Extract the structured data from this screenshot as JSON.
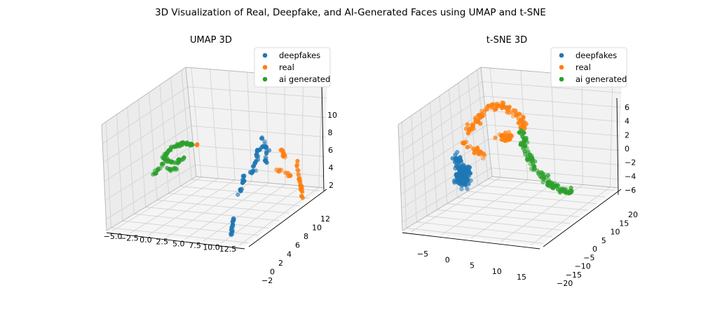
{
  "suptitle": "3D Visualization of Real, Deepfake, and AI-Generated Faces using UMAP and t-SNE",
  "chart_data": [
    {
      "type": "scatter",
      "title": "UMAP 3D",
      "legend": {
        "placement": "top-right",
        "entries": [
          "deepfakes",
          "real",
          "ai generated"
        ]
      },
      "axes": {
        "x": {
          "ticks": [
            "−5.0",
            "−2.5",
            "0.0",
            "2.5",
            "5.0",
            "7.5",
            "10.0",
            "12.5"
          ]
        },
        "y": {
          "ticks": [
            "−2",
            "0",
            "2",
            "4",
            "6",
            "8",
            "10",
            "12"
          ]
        },
        "z": {
          "ticks": [
            "2",
            "4",
            "6",
            "8",
            "10"
          ]
        }
      },
      "grid": true,
      "series": [
        {
          "name": "deepfakes",
          "color": "#1f77b4",
          "clusters": [
            {
              "type": "curve",
              "path": [
                [
                  329,
                  338
                ],
                [
                  332,
                  320
                ],
                [
                  334,
                  300
                ]
              ],
              "spread": 2,
              "n": 20
            },
            {
              "type": "curve",
              "path": [
                [
                  340,
                  280
                ],
                [
                  346,
                  262
                ],
                [
                  349,
                  252
                ]
              ],
              "spread": 2.5,
              "n": 14
            },
            {
              "type": "curve",
              "path": [
                [
                  345,
                  252
                ],
                [
                  356,
                  248
                ],
                [
                  364,
                  242
                ]
              ],
              "spread": 2.5,
              "n": 12
            },
            {
              "type": "curve",
              "path": [
                [
                  360,
                  240
                ],
                [
                  368,
                  228
                ],
                [
                  367,
                  214
                ]
              ],
              "spread": 2.5,
              "n": 14
            },
            {
              "type": "curve",
              "path": [
                [
                  368,
                  215
                ],
                [
                  376,
                  208
                ],
                [
                  382,
                  215
                ],
                [
                  378,
                  225
                ],
                [
                  380,
                  232
                ]
              ],
              "spread": 2.5,
              "n": 18
            },
            {
              "type": "curve",
              "path": [
                [
                  371,
                  193
                ],
                [
                  376,
                  203
                ],
                [
                  380,
                  212
                ]
              ],
              "spread": 2.5,
              "n": 10
            }
          ]
        },
        {
          "name": "real",
          "color": "#ff7f0e",
          "clusters": [
            {
              "type": "curve",
              "path": [
                [
                  402,
                  213
                ],
                [
                  406,
                  222
                ],
                [
                  403,
                  230
                ]
              ],
              "spread": 3,
              "n": 12
            },
            {
              "type": "curve",
              "path": [
                [
                  396,
                  243
                ],
                [
                  408,
                  246
                ],
                [
                  414,
                  252
                ]
              ],
              "spread": 3,
              "n": 12
            },
            {
              "type": "curve",
              "path": [
                [
                  423,
                  230
                ],
                [
                  426,
                  252
                ],
                [
                  430,
                  270
                ],
                [
                  432,
                  284
                ]
              ],
              "spread": 2.5,
              "n": 26
            },
            {
              "type": "blob",
              "center": [
                280,
                207
              ],
              "rx": 3,
              "ry": 3,
              "n": 3
            }
          ]
        },
        {
          "name": "ai generated",
          "color": "#2ca02c",
          "clusters": [
            {
              "type": "curve",
              "path": [
                [
                  218,
                  250
                ],
                [
                  232,
                  236
                ],
                [
                  236,
                  220
                ],
                [
                  248,
                  210
                ],
                [
                  262,
                  205
                ],
                [
                  276,
                  208
                ]
              ],
              "spread": 3.5,
              "n": 60
            },
            {
              "type": "curve",
              "path": [
                [
                  238,
                  230
                ],
                [
                  250,
                  232
                ],
                [
                  262,
                  226
                ]
              ],
              "spread": 3.5,
              "n": 20
            },
            {
              "type": "curve",
              "path": [
                [
                  236,
                  240
                ],
                [
                  244,
                  242
                ],
                [
                  252,
                  240
                ]
              ],
              "spread": 3,
              "n": 12
            }
          ]
        }
      ]
    },
    {
      "type": "scatter",
      "title": "t-SNE 3D",
      "legend": {
        "placement": "top-right",
        "entries": [
          "deepfakes",
          "real",
          "ai generated"
        ]
      },
      "axes": {
        "x": {
          "ticks": [
            "−5",
            "0",
            "5",
            "10",
            "15"
          ]
        },
        "y": {
          "ticks": [
            "−20",
            "−15",
            "−10",
            "−5",
            "0",
            "5",
            "10",
            "15",
            "20"
          ]
        },
        "z": {
          "ticks": [
            "−6",
            "−4",
            "−2",
            "0",
            "2",
            "4",
            "6"
          ]
        }
      },
      "grid": true,
      "series": [
        {
          "name": "deepfakes",
          "color": "#1f77b4",
          "clusters": [
            {
              "type": "blob",
              "center": [
                660,
                248
              ],
              "rx": 15,
              "ry": 25,
              "n": 150
            },
            {
              "type": "blob",
              "center": [
                652,
                226
              ],
              "rx": 8,
              "ry": 10,
              "n": 20
            }
          ]
        },
        {
          "name": "real",
          "color": "#ff7f0e",
          "clusters": [
            {
              "type": "curve",
              "path": [
                [
                  668,
                  188
                ],
                [
                  684,
                  168
                ],
                [
                  700,
                  152
                ],
                [
                  722,
                  152
                ],
                [
                  744,
                  168
                ],
                [
                  748,
                  182
                ]
              ],
              "spread": 8,
              "n": 95
            },
            {
              "type": "curve",
              "path": [
                [
                  660,
                  202
                ],
                [
                  674,
                  212
                ],
                [
                  690,
                  222
                ]
              ],
              "spread": 6,
              "n": 25
            },
            {
              "type": "blob",
              "center": [
                720,
                196
              ],
              "rx": 16,
              "ry": 12,
              "n": 30
            }
          ]
        },
        {
          "name": "ai generated",
          "color": "#2ca02c",
          "clusters": [
            {
              "type": "curve",
              "path": [
                [
                  744,
                  188
                ],
                [
                  748,
                  212
                ],
                [
                  762,
                  238
                ],
                [
                  782,
                  260
                ],
                [
                  800,
                  272
                ],
                [
                  815,
                  274
                ]
              ],
              "spread": 7,
              "n": 110
            }
          ]
        }
      ]
    }
  ]
}
